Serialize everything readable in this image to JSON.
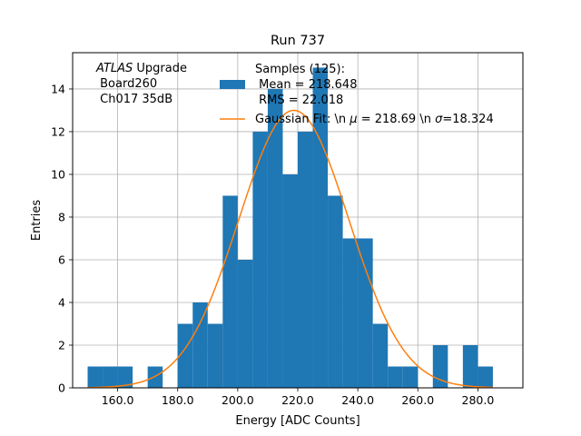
{
  "chart_data": {
    "type": "bar",
    "title": "Run 737",
    "xlabel": "Energy [ADC Counts]",
    "ylabel": "Entries",
    "xlim": [
      145,
      295
    ],
    "ylim": [
      0,
      15.7
    ],
    "xticks": [
      160,
      180,
      200,
      220,
      240,
      260,
      280
    ],
    "xtick_labels": [
      "160.0",
      "180.0",
      "200.0",
      "220.0",
      "240.0",
      "260.0",
      "280.0"
    ],
    "yticks": [
      0,
      2,
      4,
      6,
      8,
      10,
      12,
      14
    ],
    "ytick_labels": [
      "0",
      "2",
      "4",
      "6",
      "8",
      "10",
      "12",
      "14"
    ],
    "grid": true,
    "bin_width": 5,
    "bins": [
      {
        "x": 150,
        "count": 1
      },
      {
        "x": 155,
        "count": 1
      },
      {
        "x": 160,
        "count": 1
      },
      {
        "x": 170,
        "count": 1
      },
      {
        "x": 180,
        "count": 3
      },
      {
        "x": 185,
        "count": 4
      },
      {
        "x": 190,
        "count": 3
      },
      {
        "x": 195,
        "count": 9
      },
      {
        "x": 200,
        "count": 6
      },
      {
        "x": 205,
        "count": 12
      },
      {
        "x": 210,
        "count": 14
      },
      {
        "x": 215,
        "count": 10
      },
      {
        "x": 220,
        "count": 12
      },
      {
        "x": 225,
        "count": 15
      },
      {
        "x": 230,
        "count": 9
      },
      {
        "x": 235,
        "count": 7
      },
      {
        "x": 240,
        "count": 7
      },
      {
        "x": 245,
        "count": 3
      },
      {
        "x": 250,
        "count": 1
      },
      {
        "x": 255,
        "count": 1
      },
      {
        "x": 265,
        "count": 2
      },
      {
        "x": 275,
        "count": 2
      },
      {
        "x": 280,
        "count": 1
      }
    ],
    "fit": {
      "mu": 218.69,
      "sigma": 18.324,
      "amplitude": 13.0,
      "x_range": [
        150,
        285
      ]
    },
    "annotation_lines": [
      "ATLAS Upgrade",
      " Board260",
      " Ch017 35dB"
    ],
    "legend": {
      "placement": "top-right",
      "hist_entry": [
        "Samples (125):",
        " Mean = 218.648",
        " RMS = 22.018"
      ],
      "fit_entry": "Gaussian Fit: \\n μ = 218.69 \\n σ=18.324"
    },
    "colors": {
      "bars": "#1f77b4",
      "fit": "#ff7f0e",
      "grid": "#b0b0b0"
    }
  }
}
